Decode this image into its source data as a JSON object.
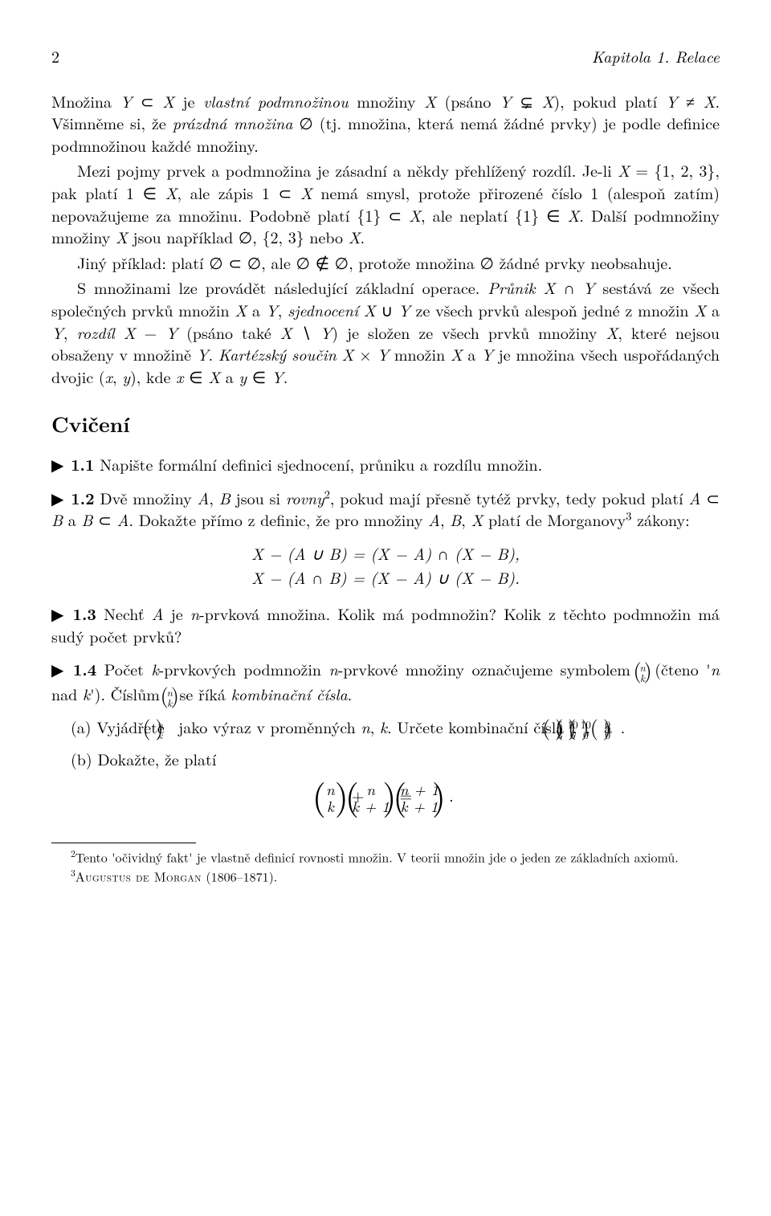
{
  "header": {
    "page_number": "2",
    "chapter_title": "Kapitola 1.  Relace"
  },
  "body": {
    "p1": "Množina Y ⊂ X je vlastní podmnožinou množiny X (psáno Y ⊊ X), pokud platí Y ≠ X. Všimněme si, že prázdná množina ∅ (tj. množina, která nemá žádné prvky) je podle definice podmnožinou každé množiny.",
    "p2": "Mezi pojmy prvek a podmnožina je zásadní a někdy přehlížený rozdíl. Je-li X = {1, 2, 3}, pak platí 1 ∈ X, ale zápis 1 ⊂ X nemá smysl, protože přirozené číslo 1 (alespoň zatím) nepovažujeme za množinu. Podobně platí {1} ⊂ X, ale neplatí {1} ∈ X. Další podmnožiny množiny X jsou například ∅, {2, 3} nebo X.",
    "p3": "Jiný příklad: platí ∅ ⊂ ∅, ale ∅ ∉ ∅, protože množina ∅ žádné prvky neobsahuje.",
    "p4": "S množinami lze provádět následující základní operace. Průnik X ∩ Y sestává ze všech společných prvků množin X a Y, sjednocení X ∪ Y ze všech prvků alespoň jedné z množin X a Y, rozdíl X − Y (psáno také X ∖ Y) je složen ze všech prvků množiny X, které nejsou obsaženy v množině Y. Kartézský součin X × Y množin X a Y je množina všech uspořádaných dvojic (x, y), kde x ∈ X a y ∈ Y.",
    "section_heading": "Cvičení",
    "ex1": {
      "num": "1.1",
      "text": "Napište formální definici sjednocení, průniku a rozdílu množin."
    },
    "ex2": {
      "num": "1.2",
      "text_a": "Dvě množiny A, B jsou si rovny",
      "sup": "2",
      "text_b": ", pokud mají přesně tytéž prvky, tedy pokud platí A ⊂ B a B ⊂ A. Dokažte přímo z definic, že pro množiny A, B, X platí de Morganovy",
      "sup2": "3",
      "text_c": " zákony:",
      "eq1": "X − (A ∪ B) = (X − A) ∩ (X − B),",
      "eq2": "X − (A ∩ B) = (X − A) ∪ (X − B)."
    },
    "ex3": {
      "num": "1.3",
      "text": "Nechť A je n-prvková množina. Kolik má podmnožin? Kolik z těchto podmnožin má sudý počet prvků?"
    },
    "ex4": {
      "num": "1.4",
      "lead_a": "Počet k-prvkových podmnožin n-prvkové množiny označujeme symbolem ",
      "binom1": {
        "n": "n",
        "k": "k"
      },
      "lead_b": " (čteno 'n nad k'). Číslům ",
      "binom2": {
        "n": "n",
        "k": "k"
      },
      "lead_c": " se říká kombinační čísla.",
      "a_label": "(a)",
      "a_text_a": "Vyjádřete ",
      "a_binom": {
        "n": "n",
        "k": "k"
      },
      "a_text_b": " jako výraz v proměnných n, k. Určete kombinační čísla ",
      "a_binoms": [
        {
          "n": "6",
          "k": "3"
        },
        {
          "n": "10",
          "k": "6"
        },
        {
          "n": "10",
          "k": "0"
        },
        {
          "n": "0",
          "k": "0"
        }
      ],
      "a_sep1": ", ",
      "a_sep2": ", ",
      "a_sep3": " a ",
      "a_end": ".",
      "b_label": "(b)",
      "b_text": "Dokažte, že platí",
      "b_eq_l": {
        "n": "n",
        "k": "k"
      },
      "b_eq_plus": " + ",
      "b_eq_m": {
        "n": "n",
        "k": "k + 1"
      },
      "b_eq_eq": " = ",
      "b_eq_r": {
        "n": "n + 1",
        "k": "k + 1"
      },
      "b_eq_end": "."
    }
  },
  "footnotes": {
    "f2_sup": "2",
    "f2": "Tento 'očividný fakt' je vlastně definicí rovnosti množin. V teorii množin jde o jeden ze základních axiomů.",
    "f3_sup": "3",
    "f3_name": "Augustus de Morgan",
    "f3_dates": " (1806–1871)."
  },
  "style": {
    "marker_glyph": "▶",
    "italic_words": [
      "vlastní podmnožinou",
      "prázdná množina",
      "Průnik",
      "sjednocení",
      "rozdíl",
      "Kartézský součin",
      "rovny",
      "kombinační čísla"
    ]
  }
}
